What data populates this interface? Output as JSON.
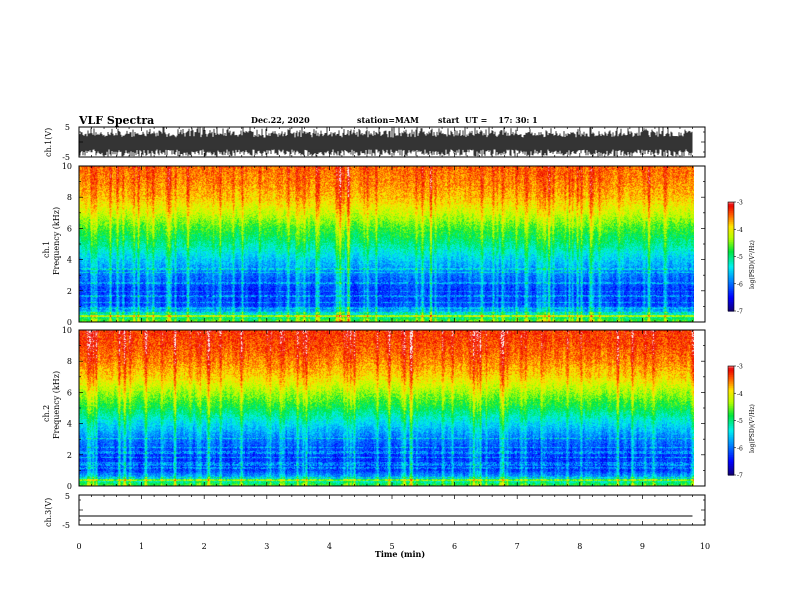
{
  "header": {
    "title": "VLF Spectra",
    "date": "Dec.22, 2020",
    "station": "station=MAM",
    "start": "start  UT =    17: 30: 1"
  },
  "chart_data": [
    {
      "type": "line",
      "panel": "ch1-waveform",
      "ylabel": "ch.1(V)",
      "ylim": [
        -5,
        5
      ],
      "yticks": [
        "5",
        "-5"
      ],
      "description_values": "dense broadband waveform, amplitude mostly between -4 and +4 V with many saturated spikes"
    },
    {
      "type": "heatmap",
      "panel": "ch1-spectrogram",
      "ylabel": "ch.1 Frequency (kHz)",
      "ylim": [
        0,
        10
      ],
      "yticks": [
        "0",
        "2",
        "4",
        "6",
        "8",
        "10"
      ],
      "colorbar": {
        "label": "log(PSD)(V²/Hz)",
        "range": [
          -7,
          -3
        ],
        "ticks": [
          "-3",
          "-4",
          "-5",
          "-6",
          "-7"
        ]
      },
      "profile": {
        "freq_khz": [
          0,
          0.5,
          1,
          2,
          3,
          4,
          5,
          6,
          7,
          8,
          9,
          10
        ],
        "log_psd": [
          -4.5,
          -5.4,
          -6.1,
          -6.2,
          -5.9,
          -5.5,
          -5.0,
          -4.6,
          -4.1,
          -3.7,
          -3.5,
          -3.4
        ]
      }
    },
    {
      "type": "heatmap",
      "panel": "ch2-spectrogram",
      "ylabel": "ch.2 Frequency (kHz)",
      "ylim": [
        0,
        10
      ],
      "yticks": [
        "0",
        "2",
        "4",
        "6",
        "8",
        "10"
      ],
      "colorbar": {
        "label": "log(PSD)(V²/Hz)",
        "range": [
          -7,
          -3
        ],
        "ticks": [
          "-3",
          "-4",
          "-5",
          "-6",
          "-7"
        ]
      },
      "profile": {
        "freq_khz": [
          0,
          0.5,
          1,
          2,
          3,
          4,
          5,
          6,
          7,
          8,
          9,
          10
        ],
        "log_psd": [
          -4.6,
          -5.6,
          -6.2,
          -6.2,
          -5.9,
          -5.4,
          -4.8,
          -4.3,
          -3.8,
          -3.5,
          -3.3,
          -3.2
        ]
      }
    },
    {
      "type": "line",
      "panel": "ch3-waveform",
      "ylabel": "ch.3(V)",
      "ylim": [
        -5,
        5
      ],
      "yticks": [
        "5",
        "-5"
      ],
      "x": [
        0,
        9.8
      ],
      "y": [
        -2,
        -2
      ]
    }
  ],
  "xaxis": {
    "label": "Time (min)",
    "range": [
      0,
      10
    ],
    "ticks": [
      "0",
      "1",
      "2",
      "3",
      "4",
      "5",
      "6",
      "7",
      "8",
      "9",
      "10"
    ],
    "data_end": 9.8
  }
}
